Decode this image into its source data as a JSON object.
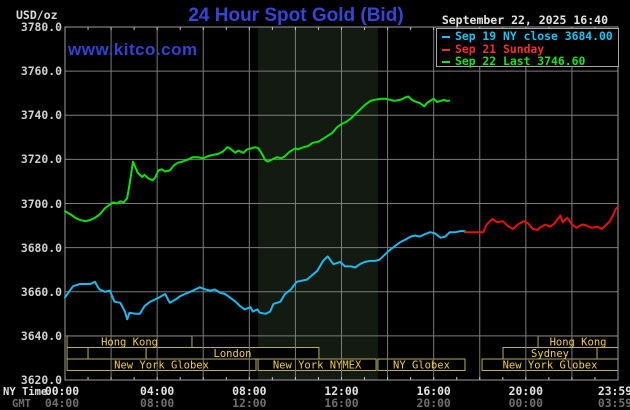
{
  "header": {
    "units_label": "USD/oz",
    "title": "24 Hour Spot Gold (Bid)",
    "datetime": "September 22, 2025 16:40",
    "watermark": "www.kitco.com"
  },
  "legend": {
    "entries": [
      {
        "label": "Sep 19 NY close 3684.00",
        "color": "#1fc3f2"
      },
      {
        "label": "Sep 21 Sunday",
        "color": "#f23030"
      },
      {
        "label": "Sep 22 Last 3746.60",
        "color": "#20e020"
      }
    ]
  },
  "axes": {
    "ny_label": "NY Time",
    "gmt_label": "GMT",
    "ny_ticks": [
      "00:00",
      "04:00",
      "08:00",
      "12:00",
      "16:00",
      "20:00",
      "23:59"
    ],
    "gmt_ticks": [
      "04:00",
      "08:00",
      "12:00",
      "16:00",
      "20:00",
      "00:00",
      "03:59"
    ],
    "y_ticks": [
      "3780.0",
      "3760.0",
      "3740.0",
      "3720.0",
      "3700.0",
      "3680.0",
      "3660.0",
      "3640.0",
      "3620.0"
    ]
  },
  "chart_data": {
    "type": "line",
    "title": "24 Hour Spot Gold (Bid)",
    "xlabel": "NY Time (hours 00:00-23:59)",
    "ylabel": "USD/oz",
    "ylim": [
      3620,
      3780
    ],
    "xlim_hours": [
      0,
      24
    ],
    "grid": {
      "x_step_hours": 2,
      "y_step": 20
    },
    "nymex_floor_shading": {
      "start_hour": 8.38,
      "end_hour": 13.58
    },
    "series": [
      {
        "name": "Sep 22 Last 3746.60",
        "color": "#0de00d",
        "points": [
          [
            0,
            3696.5
          ],
          [
            0.25,
            3695
          ],
          [
            0.45,
            3693.5
          ],
          [
            0.65,
            3692.5
          ],
          [
            0.9,
            3692
          ],
          [
            1.1,
            3692.5
          ],
          [
            1.3,
            3693.5
          ],
          [
            1.5,
            3695
          ],
          [
            1.75,
            3698
          ],
          [
            1.95,
            3699.5
          ],
          [
            2.1,
            3700.5
          ],
          [
            2.25,
            3700
          ],
          [
            2.4,
            3701
          ],
          [
            2.55,
            3700.5
          ],
          [
            2.7,
            3702.5
          ],
          [
            2.8,
            3708.5
          ],
          [
            2.95,
            3719
          ],
          [
            3.05,
            3716.5
          ],
          [
            3.15,
            3714
          ],
          [
            3.35,
            3712
          ],
          [
            3.45,
            3713
          ],
          [
            3.6,
            3711.5
          ],
          [
            3.8,
            3710.5
          ],
          [
            3.9,
            3711.5
          ],
          [
            4.05,
            3715
          ],
          [
            4.2,
            3715.5
          ],
          [
            4.35,
            3714.5
          ],
          [
            4.55,
            3715
          ],
          [
            4.75,
            3717.5
          ],
          [
            4.9,
            3718.5
          ],
          [
            5.1,
            3719
          ],
          [
            5.35,
            3720
          ],
          [
            5.55,
            3721
          ],
          [
            5.75,
            3721
          ],
          [
            6,
            3720.5
          ],
          [
            6.2,
            3721.5
          ],
          [
            6.4,
            3722
          ],
          [
            6.65,
            3722.5
          ],
          [
            6.85,
            3723.5
          ],
          [
            7.05,
            3725.5
          ],
          [
            7.15,
            3725
          ],
          [
            7.4,
            3723
          ],
          [
            7.5,
            3724
          ],
          [
            7.75,
            3723
          ],
          [
            7.9,
            3724.5
          ],
          [
            8.1,
            3725
          ],
          [
            8.25,
            3725.5
          ],
          [
            8.4,
            3725
          ],
          [
            8.55,
            3722.5
          ],
          [
            8.7,
            3719.5
          ],
          [
            8.8,
            3719
          ],
          [
            9,
            3720
          ],
          [
            9.2,
            3721
          ],
          [
            9.4,
            3720.5
          ],
          [
            9.55,
            3721.5
          ],
          [
            9.75,
            3723.5
          ],
          [
            10,
            3725
          ],
          [
            10.1,
            3724.5
          ],
          [
            10.35,
            3725.5
          ],
          [
            10.55,
            3726
          ],
          [
            10.75,
            3727.5
          ],
          [
            11,
            3728
          ],
          [
            11.3,
            3730
          ],
          [
            11.6,
            3732
          ],
          [
            11.8,
            3734.5
          ],
          [
            12,
            3736
          ],
          [
            12.2,
            3737
          ],
          [
            12.4,
            3738.5
          ],
          [
            12.6,
            3740.5
          ],
          [
            13,
            3744.5
          ],
          [
            13.25,
            3746.5
          ],
          [
            13.45,
            3747
          ],
          [
            13.7,
            3747.5
          ],
          [
            13.9,
            3747.5
          ],
          [
            14.1,
            3747
          ],
          [
            14.3,
            3746.5
          ],
          [
            14.55,
            3747
          ],
          [
            14.75,
            3748
          ],
          [
            14.9,
            3748.5
          ],
          [
            15.05,
            3747
          ],
          [
            15.25,
            3746
          ],
          [
            15.4,
            3745.5
          ],
          [
            15.6,
            3744
          ],
          [
            15.7,
            3745.5
          ],
          [
            15.85,
            3746.5
          ],
          [
            16,
            3747.5
          ],
          [
            16.15,
            3746
          ],
          [
            16.3,
            3746.5
          ],
          [
            16.45,
            3747
          ],
          [
            16.55,
            3746.5
          ],
          [
            16.67,
            3746.6
          ]
        ]
      },
      {
        "name": "Sep 19 NY close 3684.00",
        "color": "#1fb9ec",
        "points": [
          [
            0,
            3657.5
          ],
          [
            0.35,
            3662.5
          ],
          [
            0.65,
            3663.5
          ],
          [
            1.1,
            3663.5
          ],
          [
            1.3,
            3664.5
          ],
          [
            1.4,
            3662.5
          ],
          [
            1.5,
            3661
          ],
          [
            1.75,
            3660
          ],
          [
            1.95,
            3660.5
          ],
          [
            2.15,
            3655.5
          ],
          [
            2.4,
            3655
          ],
          [
            2.6,
            3651
          ],
          [
            2.7,
            3647.5
          ],
          [
            2.8,
            3650.5
          ],
          [
            3.05,
            3650
          ],
          [
            3.25,
            3650
          ],
          [
            3.45,
            3653.5
          ],
          [
            3.7,
            3655.5
          ],
          [
            3.9,
            3656.5
          ],
          [
            4.1,
            3657.5
          ],
          [
            4.35,
            3659
          ],
          [
            4.55,
            3655
          ],
          [
            4.8,
            3656.5
          ],
          [
            5,
            3658
          ],
          [
            5.2,
            3659
          ],
          [
            5.45,
            3660
          ],
          [
            5.65,
            3661
          ],
          [
            5.85,
            3662
          ],
          [
            6.1,
            3661
          ],
          [
            6.3,
            3660.5
          ],
          [
            6.5,
            3661
          ],
          [
            6.75,
            3659.5
          ],
          [
            6.95,
            3659
          ],
          [
            7.15,
            3657.5
          ],
          [
            7.4,
            3655.5
          ],
          [
            7.6,
            3653.5
          ],
          [
            7.8,
            3652
          ],
          [
            8.05,
            3653
          ],
          [
            8.15,
            3651
          ],
          [
            8.35,
            3652
          ],
          [
            8.45,
            3650.5
          ],
          [
            8.7,
            3650
          ],
          [
            8.9,
            3651
          ],
          [
            9.05,
            3654.5
          ],
          [
            9.35,
            3655.5
          ],
          [
            9.55,
            3659
          ],
          [
            9.8,
            3661
          ],
          [
            10.05,
            3664.5
          ],
          [
            10.5,
            3665.5
          ],
          [
            10.95,
            3669.5
          ],
          [
            11.2,
            3674
          ],
          [
            11.4,
            3676
          ],
          [
            11.65,
            3672.5
          ],
          [
            11.95,
            3673.5
          ],
          [
            12.15,
            3671.5
          ],
          [
            12.4,
            3671.5
          ],
          [
            12.6,
            3671
          ],
          [
            12.8,
            3672.5
          ],
          [
            13,
            3673.5
          ],
          [
            13.25,
            3674
          ],
          [
            13.45,
            3674
          ],
          [
            13.65,
            3674.5
          ],
          [
            13.9,
            3677
          ],
          [
            14.1,
            3679
          ],
          [
            14.3,
            3680.5
          ],
          [
            14.55,
            3682.5
          ],
          [
            14.75,
            3683.5
          ],
          [
            15,
            3685
          ],
          [
            15.2,
            3685.5
          ],
          [
            15.4,
            3685
          ],
          [
            15.6,
            3686
          ],
          [
            15.85,
            3687
          ],
          [
            16.05,
            3686.5
          ],
          [
            16.3,
            3684.5
          ],
          [
            16.5,
            3685
          ],
          [
            16.7,
            3687
          ],
          [
            16.95,
            3687
          ],
          [
            17.15,
            3687.5
          ],
          [
            17.35,
            3687.5
          ]
        ]
      },
      {
        "name": "Sep 21 Sunday",
        "color": "#ea1010",
        "points": [
          [
            17.35,
            3687
          ],
          [
            18.15,
            3687
          ],
          [
            18.3,
            3690.5
          ],
          [
            18.55,
            3693
          ],
          [
            18.75,
            3691.5
          ],
          [
            19,
            3692
          ],
          [
            19.25,
            3689.5
          ],
          [
            19.45,
            3688.5
          ],
          [
            19.65,
            3690.5
          ],
          [
            19.9,
            3692
          ],
          [
            20.1,
            3691
          ],
          [
            20.3,
            3688.5
          ],
          [
            20.5,
            3688
          ],
          [
            20.6,
            3689
          ],
          [
            20.85,
            3690.5
          ],
          [
            21.05,
            3689.5
          ],
          [
            21.25,
            3691
          ],
          [
            21.5,
            3694.5
          ],
          [
            21.6,
            3691.5
          ],
          [
            21.8,
            3693.5
          ],
          [
            22,
            3690.5
          ],
          [
            22.2,
            3689
          ],
          [
            22.45,
            3690.5
          ],
          [
            22.65,
            3690
          ],
          [
            22.85,
            3689
          ],
          [
            23.1,
            3689.5
          ],
          [
            23.3,
            3688.5
          ],
          [
            23.5,
            3690.5
          ],
          [
            23.65,
            3692
          ],
          [
            23.8,
            3695
          ],
          [
            23.9,
            3697.5
          ],
          [
            24,
            3698.5
          ]
        ]
      }
    ],
    "market_sessions": [
      {
        "row": 0,
        "segments": [
          {
            "start_hour": 0.09,
            "end_hour": 5.51,
            "label": "Hong Kong"
          },
          {
            "start_hour": 20.53,
            "end_hour": 24,
            "label": "Hong Kong"
          }
        ]
      },
      {
        "row": 1,
        "segments": [
          {
            "start_hour": 0.09,
            "end_hour": 1.0,
            "label": ""
          },
          {
            "start_hour": 1.0,
            "end_hour": 3.52,
            "label": ""
          },
          {
            "start_hour": 3.52,
            "end_hour": 11.02,
            "label": "London"
          },
          {
            "start_hour": 19.01,
            "end_hour": 23.09,
            "label": "Sydney"
          },
          {
            "start_hour": 23.09,
            "end_hour": 24,
            "label": ""
          }
        ]
      },
      {
        "row": 2,
        "segments": [
          {
            "start_hour": 0.09,
            "end_hour": 8.29,
            "label": "New York Globex"
          },
          {
            "start_hour": 8.38,
            "end_hour": 13.5,
            "label": "New York NYMEX"
          },
          {
            "start_hour": 13.58,
            "end_hour": 17.36,
            "label": "NY Globex"
          },
          {
            "start_hour": 18.1,
            "end_hour": 24,
            "label": "New York Globex"
          }
        ]
      }
    ]
  },
  "colors": {
    "background": "#000000",
    "gridline": "#7c7c7c",
    "plot_border": "#9e9e9e",
    "nymex_shade": "#121a11",
    "session_border": "#b7ac60",
    "session_text": "#f0cc52",
    "axis_text": "#e4e4e4",
    "gmt_text": "#6f6f6f",
    "title_blue": "#3546d6"
  }
}
